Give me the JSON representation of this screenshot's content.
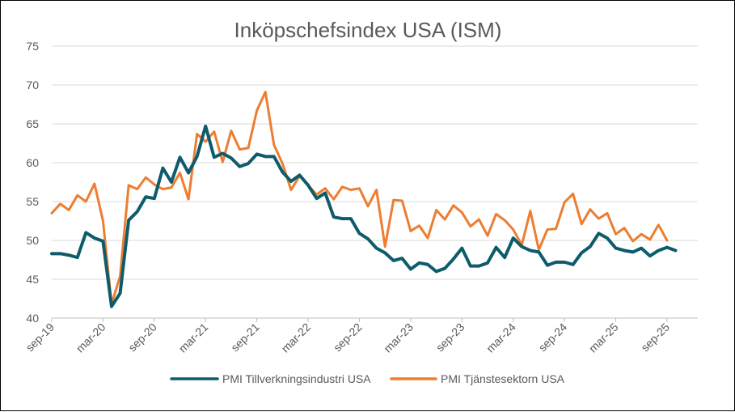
{
  "chart_data": {
    "type": "line",
    "title": "Inköpschefsindex USA (ISM)",
    "xlabel": "",
    "ylabel": "",
    "ylim": [
      40,
      75
    ],
    "yticks": [
      40,
      45,
      50,
      55,
      60,
      65,
      70,
      75
    ],
    "grid": true,
    "legend_position": "bottom",
    "xtick_labels": [
      "sep-19",
      "mar-20",
      "sep-20",
      "mar-21",
      "sep-21",
      "mar-22",
      "sep-22",
      "mar-23",
      "sep-23",
      "mar-24",
      "sep-24",
      "mar-25",
      "sep-25"
    ],
    "xtick_index": [
      0,
      6,
      12,
      18,
      24,
      30,
      36,
      42,
      48,
      54,
      60,
      66,
      72
    ],
    "series": [
      {
        "name": "PMI Tillverkningsindustri USA",
        "color": "#0E5C6B",
        "values": [
          48.3,
          48.3,
          48.1,
          47.8,
          51.0,
          50.3,
          49.9,
          41.5,
          43.2,
          52.6,
          53.7,
          55.6,
          55.4,
          59.3,
          57.5,
          60.7,
          58.7,
          60.8,
          64.7,
          60.7,
          61.2,
          60.6,
          59.5,
          59.9,
          61.1,
          60.8,
          60.8,
          58.8,
          57.6,
          58.4,
          57.1,
          55.4,
          56.1,
          53.0,
          52.8,
          52.8,
          50.9,
          50.2,
          49.0,
          48.4,
          47.4,
          47.7,
          46.3,
          47.1,
          46.9,
          46.0,
          46.4,
          47.6,
          49.0,
          46.7,
          46.7,
          47.1,
          49.1,
          47.8,
          50.3,
          49.2,
          48.7,
          48.5,
          46.8,
          47.2,
          47.2,
          46.9,
          48.4,
          49.2,
          50.9,
          50.3,
          49.0,
          48.7,
          48.5,
          49.0,
          48.0,
          48.7,
          49.1,
          48.7
        ],
        "line_width": 4
      },
      {
        "name": "PMI Tjänstesektorn USA",
        "color": "#ED7D31",
        "values": [
          53.5,
          54.7,
          53.9,
          55.8,
          55.0,
          57.3,
          52.5,
          41.8,
          45.4,
          57.1,
          56.6,
          58.1,
          57.2,
          56.6,
          56.8,
          58.7,
          55.3,
          63.7,
          62.7,
          64.0,
          60.1,
          64.1,
          61.7,
          61.9,
          66.7,
          69.1,
          62.3,
          59.9,
          56.5,
          58.3,
          57.1,
          55.9,
          56.7,
          55.3,
          56.9,
          56.5,
          56.7,
          54.4,
          56.5,
          49.2,
          55.2,
          55.1,
          51.2,
          51.9,
          50.3,
          53.9,
          52.7,
          54.5,
          53.6,
          51.8,
          52.7,
          50.6,
          53.4,
          52.6,
          51.4,
          49.4,
          53.8,
          48.8,
          51.4,
          51.5,
          54.9,
          56.0,
          52.1,
          54.0,
          52.8,
          53.5,
          50.8,
          51.6,
          49.9,
          50.8,
          50.1,
          52.0,
          50.0
        ]
      }
    ]
  }
}
